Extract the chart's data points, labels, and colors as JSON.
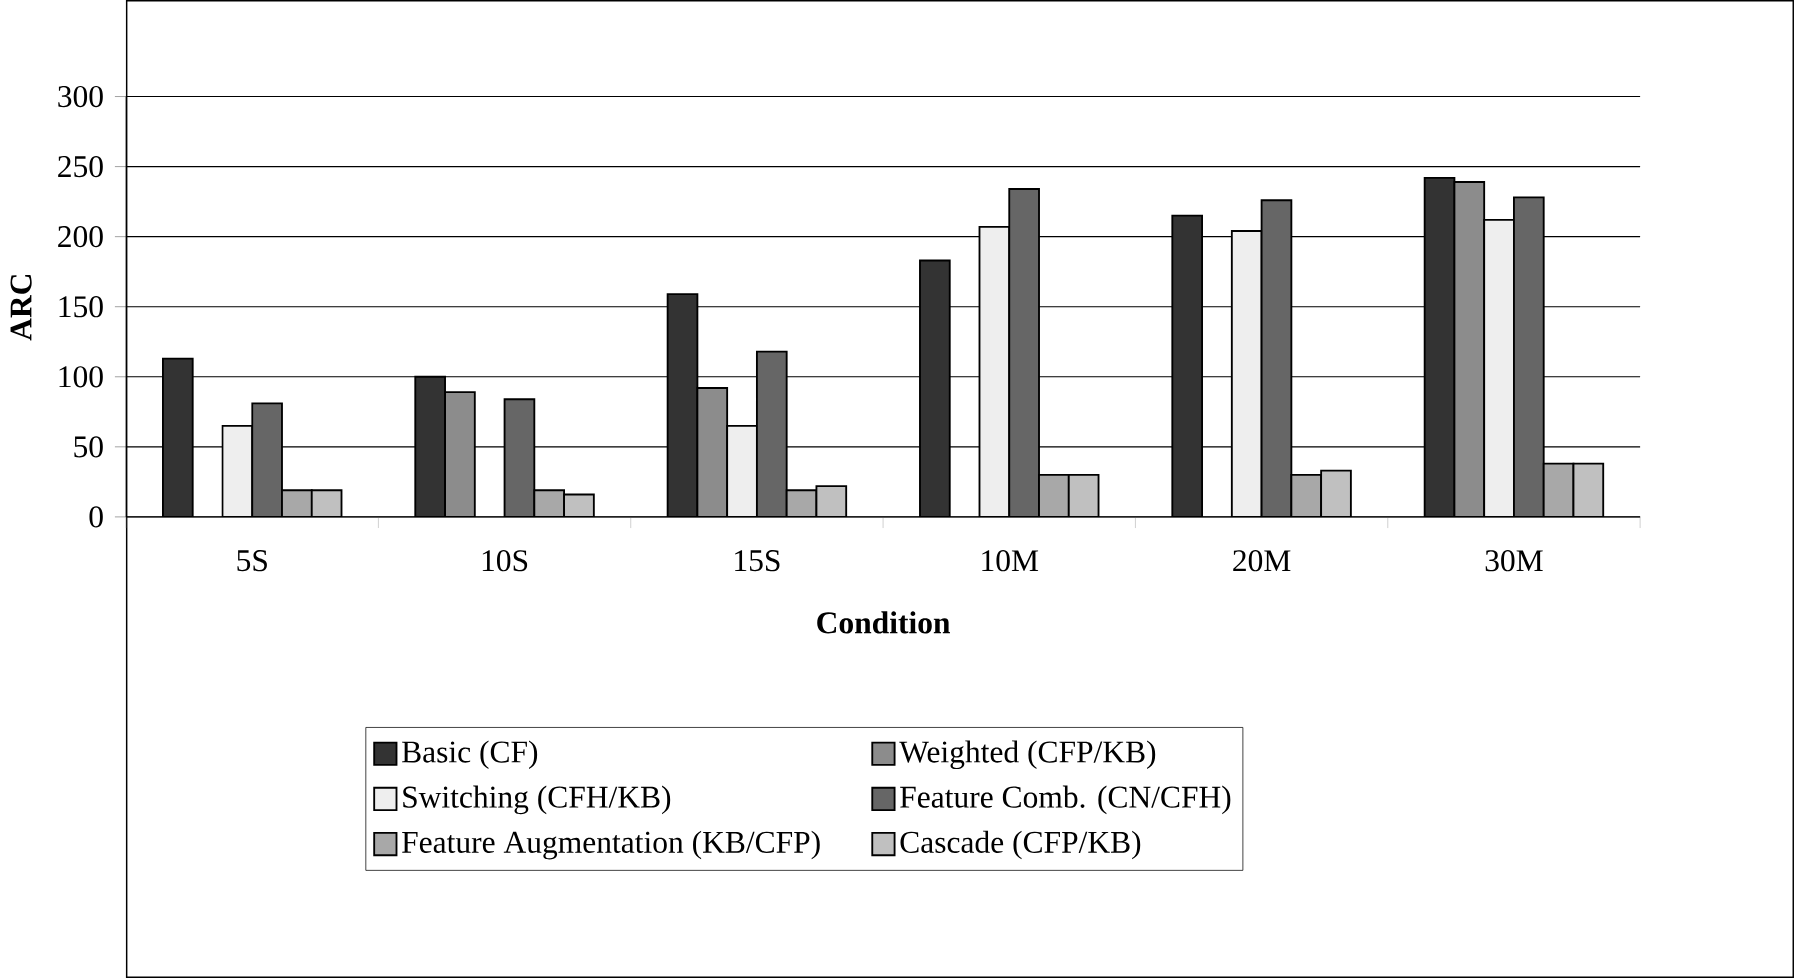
{
  "chart_data": {
    "type": "bar",
    "xlabel": "Condition",
    "ylabel": "ARC",
    "categories": [
      "5S",
      "10S",
      "15S",
      "10M",
      "20M",
      "30M"
    ],
    "series": [
      {
        "name": "Basic (CF)",
        "color": "#333333",
        "values": [
          113,
          100,
          159,
          183,
          215,
          242
        ]
      },
      {
        "name": "Weighted (CFP/KB)",
        "color": "#8c8c8c",
        "values": [
          null,
          89,
          92,
          null,
          null,
          239
        ]
      },
      {
        "name": "Switching (CFH/KB)",
        "color": "#eeeeee",
        "values": [
          65,
          null,
          65,
          207,
          204,
          212
        ]
      },
      {
        "name": "Feature Comb. (CN/CFH)",
        "color": "#666666",
        "values": [
          81,
          84,
          118,
          234,
          226,
          228
        ]
      },
      {
        "name": "Feature Augmentation (KB/CFP)",
        "color": "#a8a8a8",
        "values": [
          19,
          19,
          19,
          30,
          30,
          38
        ]
      },
      {
        "name": "Cascade (CFP/KB)",
        "color": "#c0c0c0",
        "values": [
          19,
          16,
          22,
          30,
          33,
          38
        ]
      }
    ],
    "ylim": [
      0,
      300
    ],
    "yticks": [
      0,
      50,
      100,
      150,
      200,
      250,
      300
    ],
    "grid": "y",
    "legend": "bottom"
  }
}
